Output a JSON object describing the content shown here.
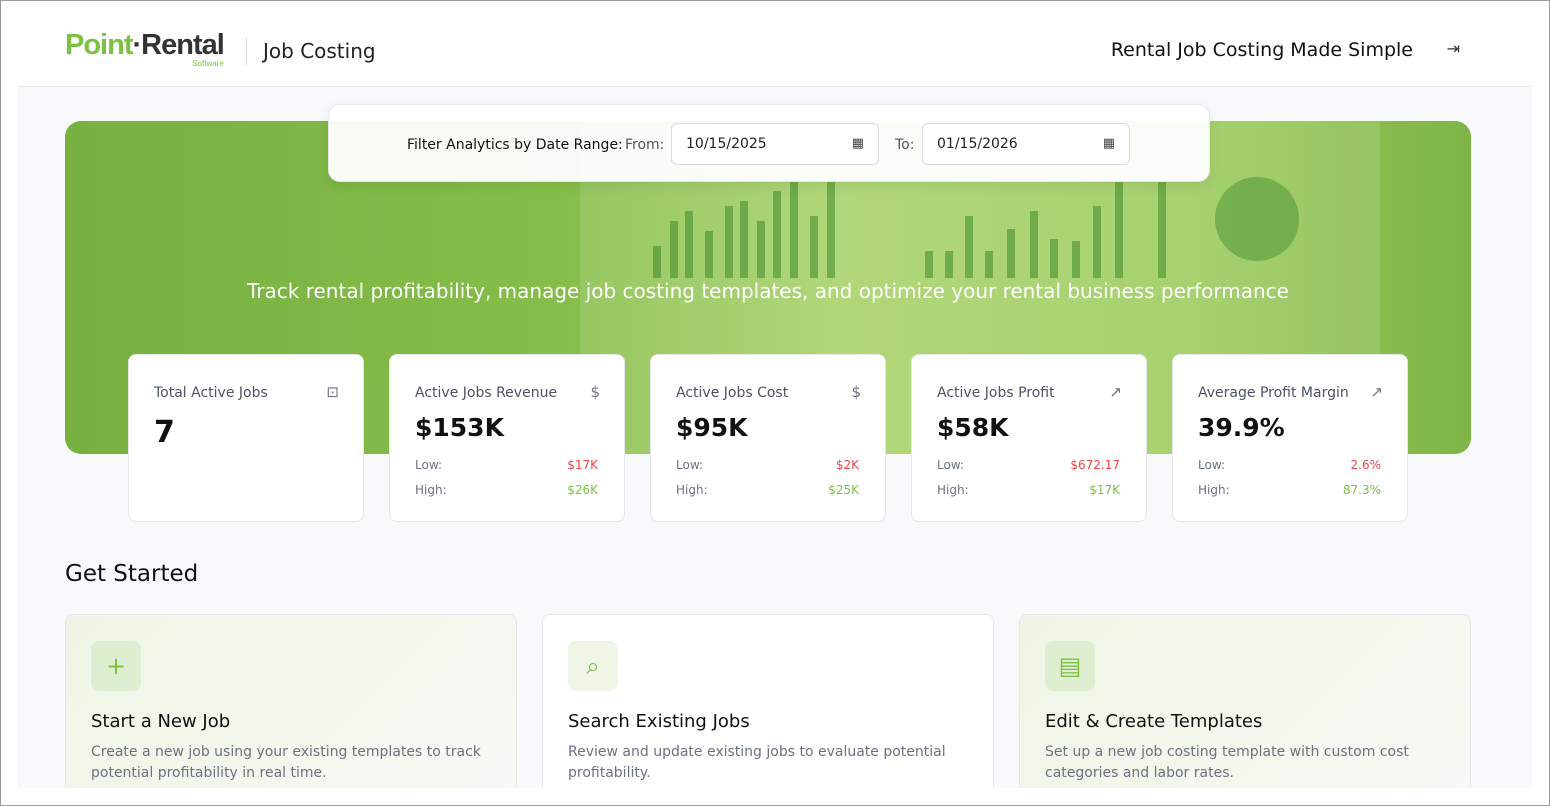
{
  "header": {
    "logo_text": "PointRental",
    "logo_sub": "Software",
    "app_title": "Job Costing",
    "tagline": "Rental Job Costing Made Simple",
    "logout_icon": "logout-icon"
  },
  "filter": {
    "label": "Filter Analytics by Date Range:",
    "from_label": "From:",
    "from_value": "10/15/2025",
    "to_label": "To:",
    "to_value": "01/15/2026"
  },
  "hero": {
    "text": "Track rental profitability, manage job costing templates, and optimize your rental business performance"
  },
  "stats": [
    {
      "title": "Total Active Jobs",
      "icon": "briefcase-icon",
      "value": "7"
    },
    {
      "title": "Active Jobs Revenue",
      "icon": "dollar-icon",
      "value": "$153K",
      "low_label": "Low:",
      "low": "$17K",
      "high_label": "High:",
      "high": "$26K"
    },
    {
      "title": "Active Jobs Cost",
      "icon": "dollar-icon",
      "value": "$95K",
      "low_label": "Low:",
      "low": "$2K",
      "high_label": "High:",
      "high": "$25K"
    },
    {
      "title": "Active Jobs Profit",
      "icon": "trending-up-icon",
      "value": "$58K",
      "low_label": "Low:",
      "low": "$672.17",
      "high_label": "High:",
      "high": "$17K"
    },
    {
      "title": "Average Profit Margin",
      "icon": "trending-up-icon",
      "value": "39.9%",
      "low_label": "Low:",
      "low": "2.6%",
      "high_label": "High:",
      "high": "87.3%"
    }
  ],
  "get_started": {
    "title": "Get Started",
    "actions": [
      {
        "title": "Start a New Job",
        "desc": "Create a new job using your existing templates to track potential profitability in real time.",
        "icon": "plus-icon"
      },
      {
        "title": "Search Existing Jobs",
        "desc": "Review and update existing jobs to evaluate potential profitability.",
        "icon": "search-icon"
      },
      {
        "title": "Edit & Create Templates",
        "desc": "Set up a new job costing template with custom cost categories and labor rates.",
        "icon": "document-icon"
      }
    ]
  },
  "colors": {
    "brand_green": "#7cc242",
    "low": "#ef4444",
    "high": "#7cc242"
  }
}
